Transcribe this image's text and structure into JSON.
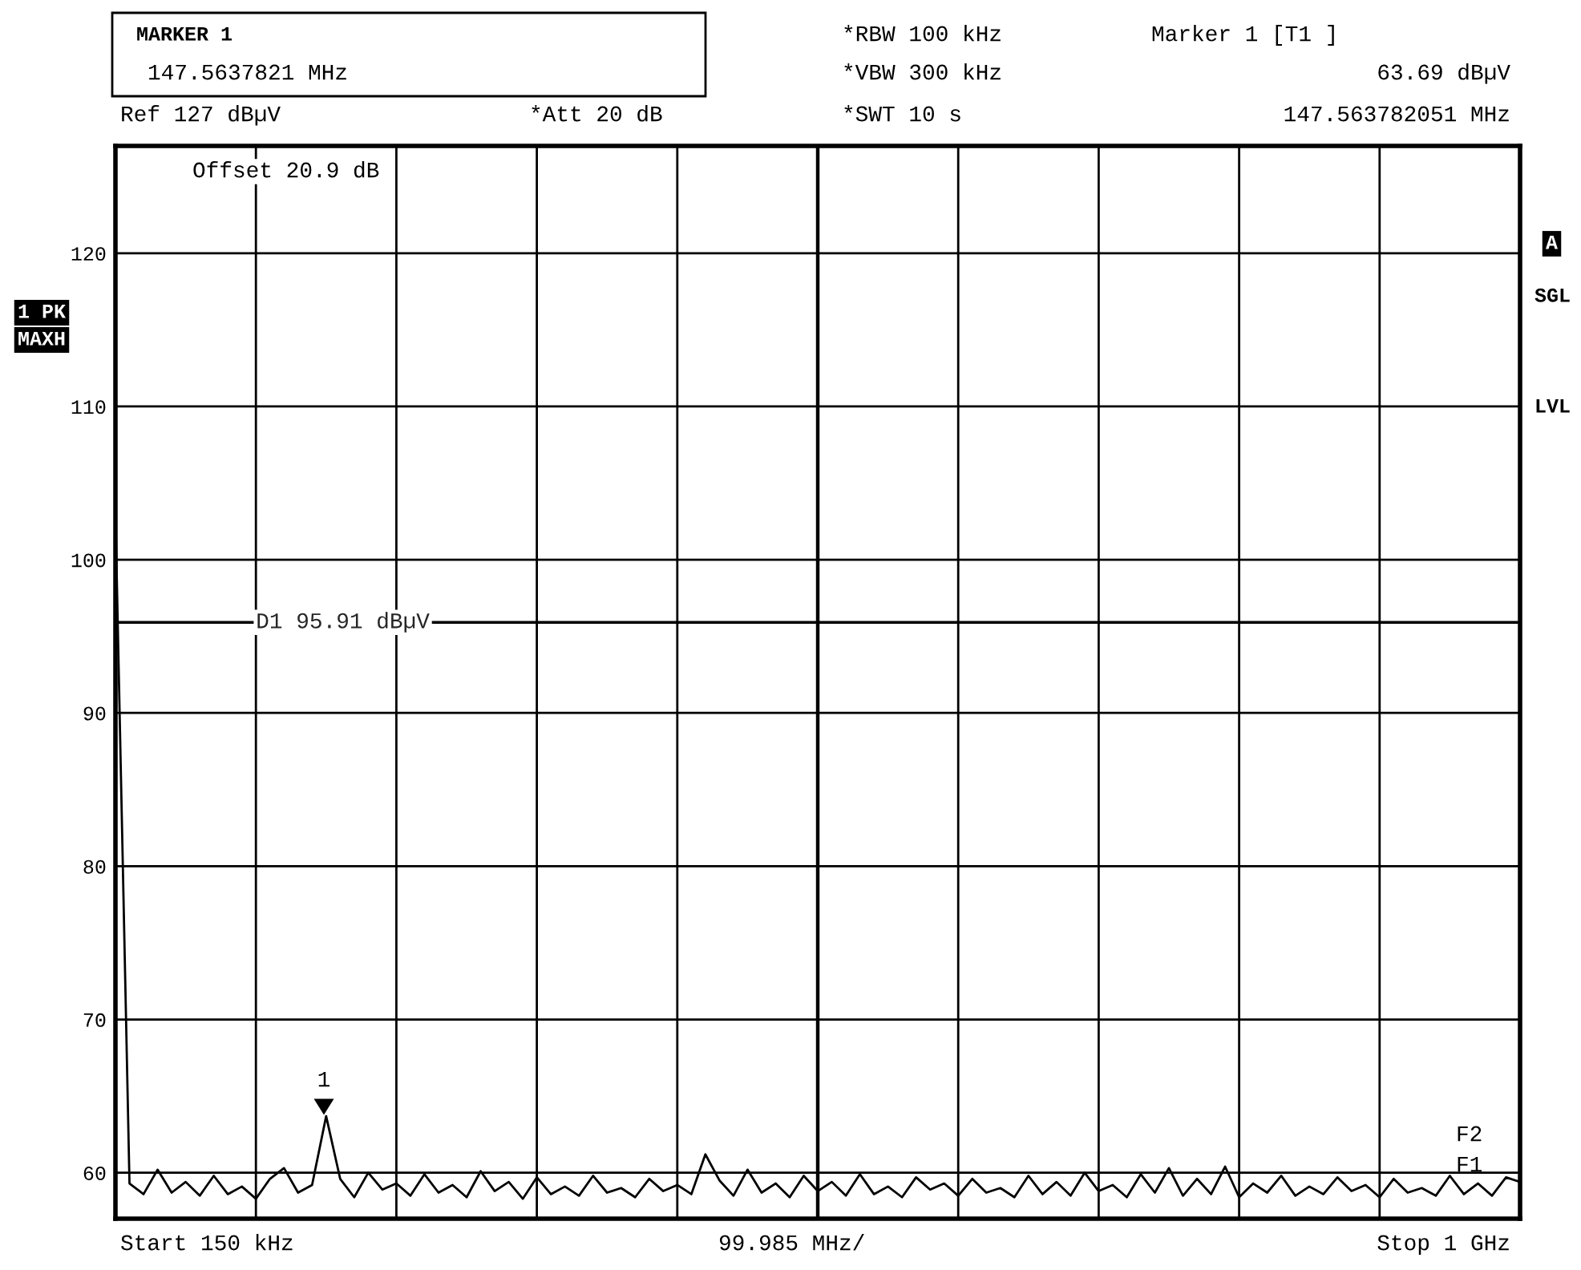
{
  "chart_data": {
    "type": "line",
    "categories": [
      null,
      null,
      null,
      null,
      null,
      null,
      null,
      null,
      null,
      null,
      null,
      null,
      null,
      null,
      null,
      null,
      null,
      null,
      null,
      null,
      null,
      null,
      null,
      null,
      null,
      null,
      null,
      null,
      null,
      null,
      null,
      null,
      null,
      null,
      null,
      null,
      null,
      null,
      null,
      null,
      null,
      null,
      null,
      null,
      null,
      null,
      null,
      null,
      null,
      null,
      null,
      null,
      null,
      null,
      null,
      null,
      null,
      null,
      null,
      null,
      null,
      null,
      null,
      null,
      null,
      null,
      null,
      null,
      null,
      null,
      null,
      null,
      null,
      null,
      null,
      null,
      null,
      null,
      null,
      null,
      null,
      null,
      null,
      null,
      null,
      null,
      null,
      null,
      null,
      null,
      null,
      null,
      null,
      null,
      null,
      null,
      null,
      null,
      null,
      null,
      null
    ],
    "series": [
      {
        "color": "#000000",
        "values": [
          103,
          59.3,
          58.6,
          60.2,
          58.7,
          59.4,
          58.5,
          59.8,
          58.6,
          59.1,
          58.3,
          59.6,
          60.3,
          58.7,
          59.2,
          63.69,
          59.6,
          58.4,
          60.0,
          58.9,
          59.3,
          58.5,
          59.9,
          58.7,
          59.2,
          58.4,
          60.1,
          58.8,
          59.4,
          58.3,
          59.7,
          58.6,
          59.1,
          58.5,
          59.8,
          58.7,
          59.0,
          58.4,
          59.6,
          58.8,
          59.2,
          58.6,
          61.2,
          59.5,
          58.5,
          60.2,
          58.7,
          59.3,
          58.4,
          59.8,
          58.8,
          59.4,
          58.5,
          59.9,
          58.6,
          59.1,
          58.4,
          59.7,
          58.9,
          59.3,
          58.5,
          59.6,
          58.7,
          59.0,
          58.4,
          59.8,
          58.6,
          59.4,
          58.5,
          60.0,
          58.8,
          59.2,
          58.4,
          59.9,
          58.7,
          60.3,
          58.5,
          59.6,
          58.6,
          60.4,
          58.4,
          59.3,
          58.7,
          59.8,
          58.5,
          59.1,
          58.6,
          59.7,
          58.8,
          59.2,
          58.4,
          59.6,
          58.7,
          59.0,
          58.5,
          59.8,
          58.6,
          59.3,
          58.5,
          59.7,
          59.4
        ]
      }
    ],
    "ylim": [
      57,
      127
    ],
    "yticks": [
      60,
      70,
      80,
      90,
      100,
      110,
      120
    ],
    "tick_labels": "y",
    "grid": true,
    "line_style": "solid",
    "ref_lines": [
      {
        "axis": "y",
        "value": 95.91,
        "label": "D1 95.91 dBµV",
        "color": "#000000",
        "line_style": "solid"
      }
    ],
    "annotations": [
      "MARKER 1",
      "147.5637821 MHz",
      "Ref 127 dBµV",
      "*Att 20 dB",
      "*RBW 100 kHz",
      "*VBW 300 kHz",
      "*SWT 10 s",
      "Marker 1 [T1 ]",
      "63.69 dBµV",
      "147.563782051 MHz",
      "Offset 20.9 dB",
      "1 PK",
      "MAXH",
      "A",
      "SGL",
      "LVL",
      "Start 150 kHz",
      "99.985 MHz/",
      "Stop 1 GHz",
      "F2",
      "F1",
      "1"
    ]
  }
}
